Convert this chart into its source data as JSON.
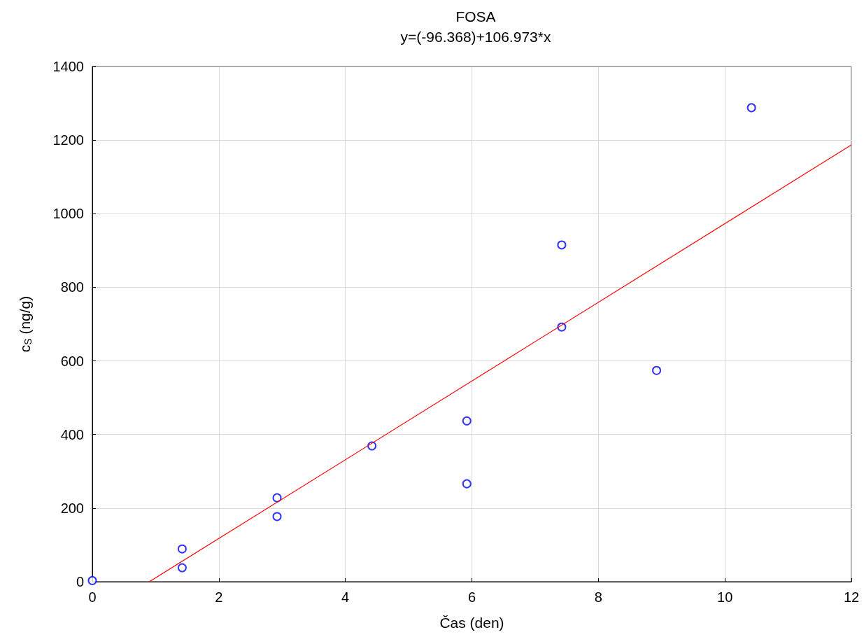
{
  "chart_data": {
    "type": "scatter",
    "title": "FOSA",
    "subtitle": "y=(-96.368)+106.973*x",
    "xlabel": "Čas (den)",
    "ylabel": "c$_{S}$ (ng/g)",
    "xlim": [
      0,
      12
    ],
    "xticks": [
      0,
      2,
      4,
      6,
      8,
      10,
      12
    ],
    "ylim": [
      0,
      1400
    ],
    "yticks": [
      0,
      200,
      400,
      600,
      800,
      1000,
      1200,
      1400
    ],
    "grid": true,
    "series": [
      {
        "color": "#0000ff",
        "marker": "circle",
        "x": [
          0,
          1.42,
          1.42,
          2.92,
          2.92,
          4.42,
          5.92,
          5.92,
          7.42,
          7.42,
          8.92,
          10.42
        ],
        "values": [
          3,
          89,
          38,
          228,
          177,
          369,
          437,
          266,
          915,
          692,
          574,
          1288
        ]
      },
      {
        "type": "line",
        "color": "#ff0000",
        "marker": "none",
        "line_style": "solid",
        "x": [
          0.901,
          12
        ],
        "values": [
          0,
          1187
        ]
      }
    ]
  }
}
